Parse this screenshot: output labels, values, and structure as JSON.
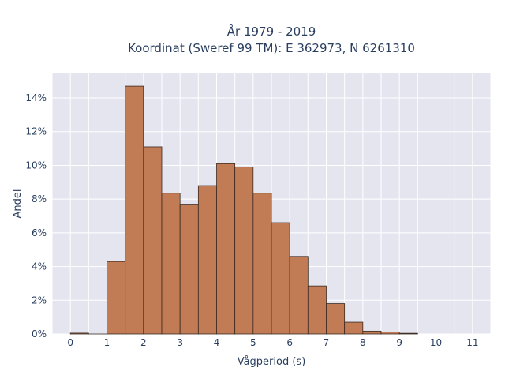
{
  "chart_data": {
    "type": "bar",
    "title_line1": "År 1979 - 2019",
    "title_line2": "Koordinat (Sweref 99 TM): E 362973, N 6261310",
    "xlabel": "Vågperiod (s)",
    "ylabel": "Andel",
    "bin_width": 0.5,
    "bins": [
      {
        "x0": 0.0,
        "value": 0.0005
      },
      {
        "x0": 0.5,
        "value": 0.0
      },
      {
        "x0": 1.0,
        "value": 0.043
      },
      {
        "x0": 1.5,
        "value": 0.147
      },
      {
        "x0": 2.0,
        "value": 0.111
      },
      {
        "x0": 2.5,
        "value": 0.0835
      },
      {
        "x0": 3.0,
        "value": 0.077
      },
      {
        "x0": 3.5,
        "value": 0.088
      },
      {
        "x0": 4.0,
        "value": 0.101
      },
      {
        "x0": 4.5,
        "value": 0.099
      },
      {
        "x0": 5.0,
        "value": 0.0835
      },
      {
        "x0": 5.5,
        "value": 0.066
      },
      {
        "x0": 6.0,
        "value": 0.046
      },
      {
        "x0": 6.5,
        "value": 0.0285
      },
      {
        "x0": 7.0,
        "value": 0.018
      },
      {
        "x0": 7.5,
        "value": 0.007
      },
      {
        "x0": 8.0,
        "value": 0.0017
      },
      {
        "x0": 8.5,
        "value": 0.0012
      },
      {
        "x0": 9.0,
        "value": 0.0004
      }
    ],
    "xlim": [
      -0.5,
      11.5
    ],
    "ylim": [
      0,
      0.155
    ],
    "xticks": [
      0,
      1,
      2,
      3,
      4,
      5,
      6,
      7,
      8,
      9,
      10,
      11
    ],
    "xtick_labels": [
      "0",
      "1",
      "2",
      "3",
      "4",
      "5",
      "6",
      "7",
      "8",
      "9",
      "10",
      "11"
    ],
    "yticks": [
      0,
      0.02,
      0.04,
      0.06,
      0.08,
      0.1,
      0.12,
      0.14
    ],
    "ytick_labels": [
      "0%",
      "2%",
      "4%",
      "6%",
      "8%",
      "10%",
      "12%",
      "14%"
    ],
    "grid": true,
    "bar_color": "#c17b55",
    "bar_edge_color": "#3a2a20",
    "plot_bg": "#e5e5f0"
  }
}
